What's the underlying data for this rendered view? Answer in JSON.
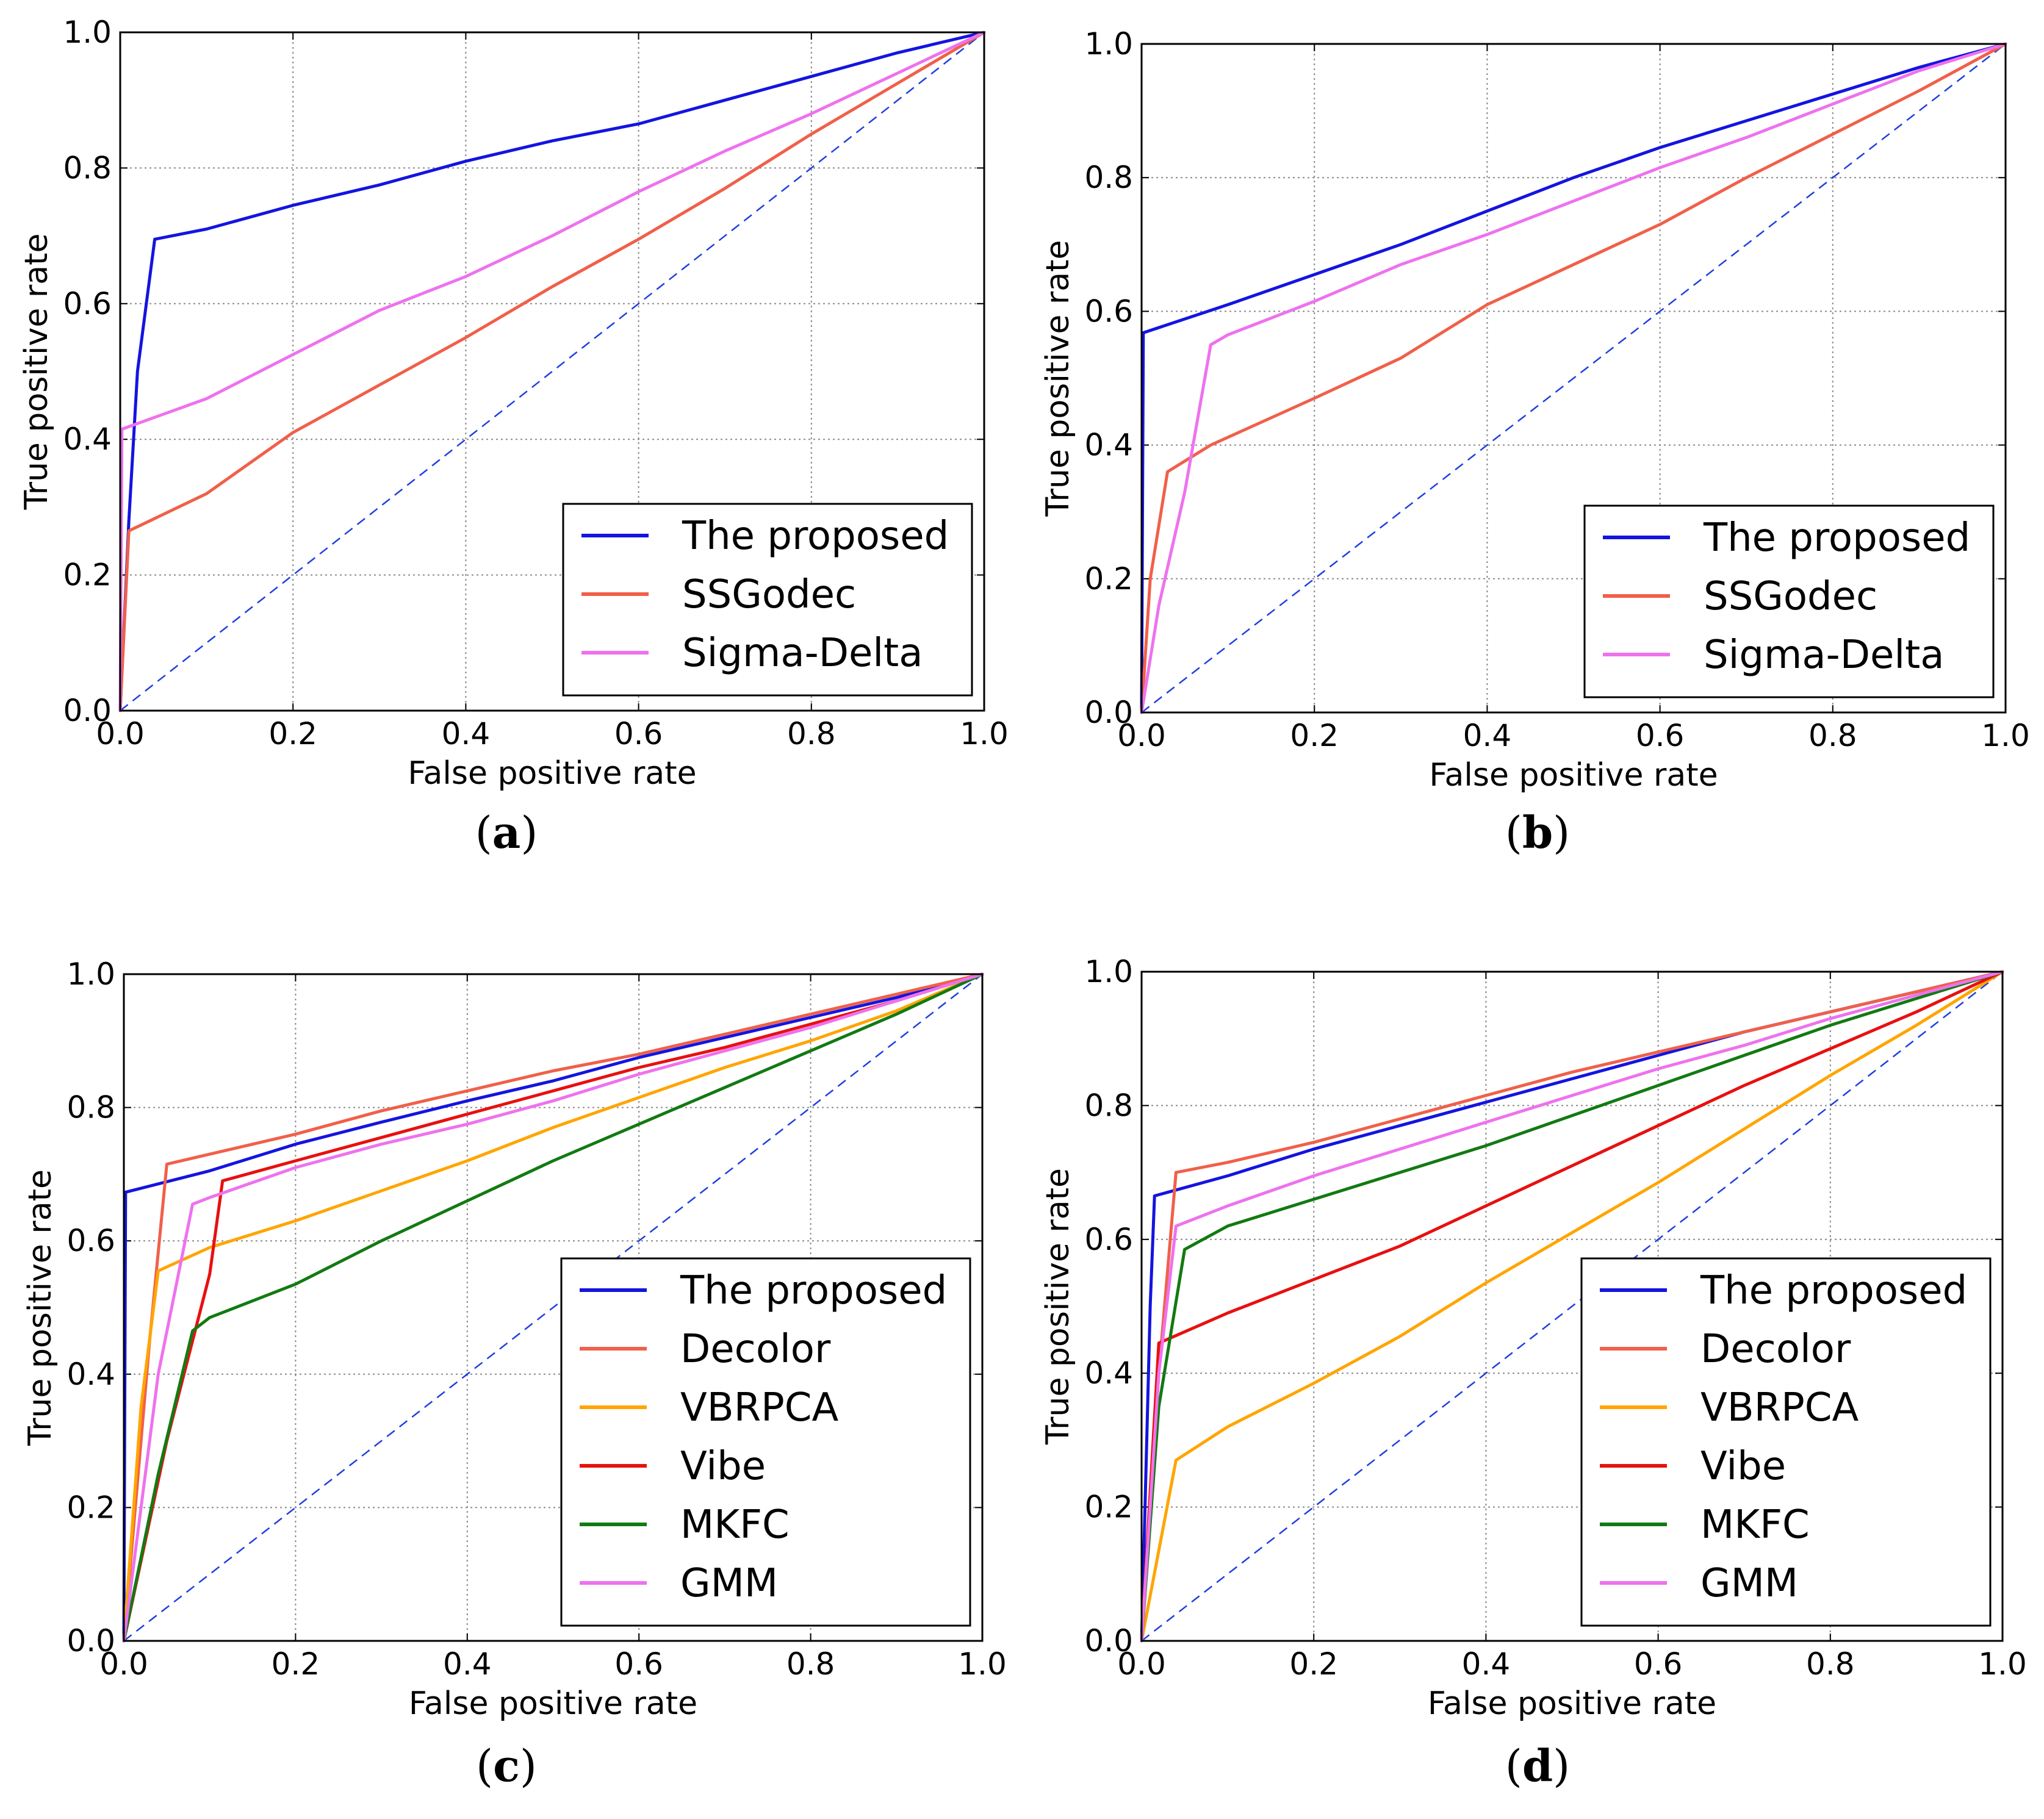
{
  "chart_data": [
    {
      "type": "line",
      "caption": "a",
      "xlabel": "False positive rate",
      "ylabel": "True positive rate",
      "xlim": [
        0,
        1
      ],
      "ylim": [
        0,
        1
      ],
      "xticks": [
        "0.0",
        "0.2",
        "0.4",
        "0.6",
        "0.8",
        "1.0"
      ],
      "yticks": [
        "0.0",
        "0.2",
        "0.4",
        "0.6",
        "0.8",
        "1.0"
      ],
      "grid": true,
      "legend_position": "lower-right",
      "diagonal": {
        "color": "#1f3fe0",
        "style": "dashed"
      },
      "series": [
        {
          "name": "The proposed",
          "color": "#1414e0",
          "x": [
            0,
            0.01,
            0.02,
            0.04,
            0.1,
            0.2,
            0.3,
            0.4,
            0.5,
            0.6,
            0.7,
            0.8,
            0.9,
            1.0
          ],
          "y": [
            0,
            0.28,
            0.5,
            0.695,
            0.71,
            0.745,
            0.775,
            0.81,
            0.84,
            0.865,
            0.9,
            0.935,
            0.97,
            1.0
          ]
        },
        {
          "name": "SSGodec",
          "color": "#f0604a",
          "x": [
            0,
            0.01,
            0.1,
            0.2,
            0.3,
            0.4,
            0.5,
            0.6,
            0.7,
            0.8,
            0.9,
            1.0
          ],
          "y": [
            0,
            0.265,
            0.32,
            0.41,
            0.48,
            0.55,
            0.625,
            0.695,
            0.77,
            0.85,
            0.925,
            1.0
          ]
        },
        {
          "name": "Sigma-Delta",
          "color": "#ee72ee",
          "x": [
            0,
            0.002,
            0.1,
            0.2,
            0.3,
            0.4,
            0.5,
            0.6,
            0.7,
            0.8,
            0.9,
            1.0
          ],
          "y": [
            0,
            0.415,
            0.46,
            0.525,
            0.59,
            0.64,
            0.7,
            0.765,
            0.825,
            0.88,
            0.94,
            1.0
          ]
        }
      ]
    },
    {
      "type": "line",
      "caption": "b",
      "xlabel": "False positive rate",
      "ylabel": "True positive rate",
      "xlim": [
        0,
        1
      ],
      "ylim": [
        0,
        1
      ],
      "xticks": [
        "0.0",
        "0.2",
        "0.4",
        "0.6",
        "0.8",
        "1.0"
      ],
      "yticks": [
        "0.0",
        "0.2",
        "0.4",
        "0.6",
        "0.8",
        "1.0"
      ],
      "grid": true,
      "legend_position": "lower-right",
      "diagonal": {
        "color": "#1f3fe0",
        "style": "dashed"
      },
      "series": [
        {
          "name": "The proposed",
          "color": "#1414e0",
          "x": [
            0,
            0.002,
            0.1,
            0.2,
            0.3,
            0.4,
            0.5,
            0.6,
            0.7,
            0.8,
            0.9,
            1.0
          ],
          "y": [
            0,
            0.568,
            0.61,
            0.655,
            0.7,
            0.75,
            0.8,
            0.845,
            0.885,
            0.925,
            0.965,
            1.0
          ]
        },
        {
          "name": "SSGodec",
          "color": "#f0604a",
          "x": [
            0,
            0.01,
            0.03,
            0.08,
            0.2,
            0.3,
            0.4,
            0.5,
            0.6,
            0.7,
            0.8,
            0.9,
            1.0
          ],
          "y": [
            0,
            0.2,
            0.36,
            0.4,
            0.47,
            0.53,
            0.61,
            0.67,
            0.73,
            0.8,
            0.865,
            0.93,
            1.0
          ]
        },
        {
          "name": "Sigma-Delta",
          "color": "#ee72ee",
          "x": [
            0,
            0.02,
            0.05,
            0.08,
            0.1,
            0.2,
            0.3,
            0.4,
            0.5,
            0.6,
            0.7,
            0.8,
            0.9,
            1.0
          ],
          "y": [
            0,
            0.16,
            0.33,
            0.55,
            0.565,
            0.615,
            0.67,
            0.715,
            0.765,
            0.815,
            0.86,
            0.91,
            0.96,
            1.0
          ]
        }
      ]
    },
    {
      "type": "line",
      "caption": "c",
      "xlabel": "False positive rate",
      "ylabel": "True positive rate",
      "xlim": [
        0,
        1
      ],
      "ylim": [
        0,
        1
      ],
      "xticks": [
        "0.0",
        "0.2",
        "0.4",
        "0.6",
        "0.8",
        "1.0"
      ],
      "yticks": [
        "0.0",
        "0.2",
        "0.4",
        "0.6",
        "0.8",
        "1.0"
      ],
      "grid": true,
      "legend_position": "lower-right",
      "diagonal": {
        "color": "#1f3fe0",
        "style": "dashed"
      },
      "series": [
        {
          "name": "The proposed",
          "color": "#1414e0",
          "x": [
            0,
            0.002,
            0.1,
            0.2,
            0.3,
            0.4,
            0.5,
            0.6,
            0.7,
            0.8,
            0.9,
            1.0
          ],
          "y": [
            0,
            0.673,
            0.705,
            0.745,
            0.778,
            0.81,
            0.84,
            0.875,
            0.905,
            0.935,
            0.965,
            1.0
          ]
        },
        {
          "name": "Decolor",
          "color": "#f0604a",
          "x": [
            0,
            0.03,
            0.05,
            0.1,
            0.2,
            0.3,
            0.4,
            0.5,
            0.6,
            0.7,
            0.8,
            0.9,
            1.0
          ],
          "y": [
            0,
            0.45,
            0.715,
            0.73,
            0.76,
            0.795,
            0.825,
            0.855,
            0.88,
            0.91,
            0.94,
            0.97,
            1.0
          ]
        },
        {
          "name": "VBRPCA",
          "color": "#ffa500",
          "x": [
            0,
            0.02,
            0.04,
            0.1,
            0.2,
            0.3,
            0.4,
            0.5,
            0.6,
            0.7,
            0.8,
            0.9,
            1.0
          ],
          "y": [
            0,
            0.35,
            0.555,
            0.59,
            0.63,
            0.675,
            0.72,
            0.77,
            0.815,
            0.86,
            0.9,
            0.945,
            1.0
          ]
        },
        {
          "name": "Vibe",
          "color": "#e81010",
          "x": [
            0,
            0.05,
            0.1,
            0.115,
            0.2,
            0.3,
            0.4,
            0.5,
            0.6,
            0.7,
            0.8,
            0.9,
            1.0
          ],
          "y": [
            0,
            0.3,
            0.55,
            0.69,
            0.72,
            0.755,
            0.79,
            0.825,
            0.86,
            0.89,
            0.925,
            0.96,
            1.0
          ]
        },
        {
          "name": "MKFC",
          "color": "#127a12",
          "x": [
            0,
            0.04,
            0.08,
            0.1,
            0.2,
            0.3,
            0.4,
            0.5,
            0.6,
            0.7,
            0.8,
            0.9,
            1.0
          ],
          "y": [
            0,
            0.25,
            0.465,
            0.485,
            0.535,
            0.6,
            0.66,
            0.72,
            0.775,
            0.83,
            0.885,
            0.94,
            1.0
          ]
        },
        {
          "name": "GMM",
          "color": "#ee72ee",
          "x": [
            0,
            0.04,
            0.08,
            0.1,
            0.2,
            0.3,
            0.4,
            0.5,
            0.6,
            0.7,
            0.8,
            0.9,
            1.0
          ],
          "y": [
            0,
            0.4,
            0.655,
            0.665,
            0.71,
            0.745,
            0.775,
            0.81,
            0.85,
            0.885,
            0.92,
            0.96,
            1.0
          ]
        }
      ]
    },
    {
      "type": "line",
      "caption": "d",
      "xlabel": "False positive rate",
      "ylabel": "True positive rate",
      "xlim": [
        0,
        1
      ],
      "ylim": [
        0,
        1
      ],
      "xticks": [
        "0.0",
        "0.2",
        "0.4",
        "0.6",
        "0.8",
        "1.0"
      ],
      "yticks": [
        "0.0",
        "0.2",
        "0.4",
        "0.6",
        "0.8",
        "1.0"
      ],
      "grid": true,
      "legend_position": "lower-right",
      "diagonal": {
        "color": "#1f3fe0",
        "style": "dashed"
      },
      "series": [
        {
          "name": "The proposed",
          "color": "#1414e0",
          "x": [
            0,
            0.01,
            0.015,
            0.1,
            0.2,
            0.3,
            0.4,
            0.5,
            0.6,
            0.7,
            0.8,
            0.9,
            1.0
          ],
          "y": [
            0,
            0.5,
            0.665,
            0.695,
            0.735,
            0.77,
            0.805,
            0.84,
            0.875,
            0.91,
            0.94,
            0.97,
            1.0
          ]
        },
        {
          "name": "Decolor",
          "color": "#f0604a",
          "x": [
            0,
            0.02,
            0.04,
            0.1,
            0.2,
            0.3,
            0.4,
            0.5,
            0.6,
            0.7,
            0.8,
            0.9,
            1.0
          ],
          "y": [
            0,
            0.4,
            0.7,
            0.715,
            0.745,
            0.78,
            0.815,
            0.85,
            0.88,
            0.91,
            0.94,
            0.97,
            1.0
          ]
        },
        {
          "name": "VBRPCA",
          "color": "#ffa500",
          "x": [
            0,
            0.04,
            0.1,
            0.2,
            0.3,
            0.4,
            0.5,
            0.6,
            0.7,
            0.8,
            0.9,
            1.0
          ],
          "y": [
            0,
            0.27,
            0.32,
            0.385,
            0.455,
            0.535,
            0.61,
            0.685,
            0.765,
            0.845,
            0.92,
            1.0
          ]
        },
        {
          "name": "Vibe",
          "color": "#e81010",
          "x": [
            0,
            0.02,
            0.1,
            0.2,
            0.3,
            0.4,
            0.5,
            0.6,
            0.7,
            0.8,
            0.9,
            1.0
          ],
          "y": [
            0,
            0.445,
            0.49,
            0.54,
            0.59,
            0.65,
            0.71,
            0.77,
            0.83,
            0.885,
            0.94,
            1.0
          ]
        },
        {
          "name": "MKFC",
          "color": "#127a12",
          "x": [
            0,
            0.02,
            0.05,
            0.1,
            0.2,
            0.3,
            0.4,
            0.5,
            0.6,
            0.7,
            0.8,
            0.9,
            1.0
          ],
          "y": [
            0,
            0.35,
            0.585,
            0.62,
            0.66,
            0.7,
            0.74,
            0.785,
            0.83,
            0.875,
            0.92,
            0.96,
            1.0
          ]
        },
        {
          "name": "GMM",
          "color": "#ee72ee",
          "x": [
            0,
            0.02,
            0.04,
            0.1,
            0.2,
            0.3,
            0.4,
            0.5,
            0.6,
            0.7,
            0.8,
            0.9,
            1.0
          ],
          "y": [
            0,
            0.4,
            0.62,
            0.65,
            0.695,
            0.735,
            0.775,
            0.815,
            0.855,
            0.89,
            0.93,
            0.965,
            1.0
          ]
        }
      ]
    }
  ]
}
